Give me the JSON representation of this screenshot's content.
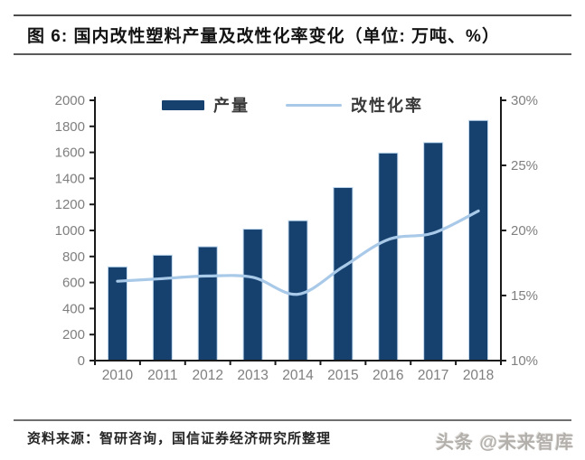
{
  "title": "图 6: 国内改性塑料产量及改性化率变化（单位: 万吨、%）",
  "source_note": "资料来源：智研咨询，国信证券经济研究所整理",
  "watermark": "头条 @未来智库",
  "colors": {
    "bar": "#16406E",
    "bar_edge": "#bdd7ee",
    "line": "#a9c9e8",
    "axis": "#1a1a1a",
    "tick_label": "#7f7f7f",
    "legend_text": "#3a3a3a"
  },
  "chart_data": {
    "type": "bar",
    "subtype": "bar+line dual axis",
    "title": "国内改性塑料产量及改性化率变化",
    "units": "万吨、%",
    "categories": [
      "2010",
      "2011",
      "2012",
      "2013",
      "2014",
      "2015",
      "2016",
      "2017",
      "2018"
    ],
    "series": [
      {
        "name": "产量",
        "type": "bar",
        "axis": "left",
        "values": [
          720,
          810,
          875,
          1010,
          1075,
          1330,
          1595,
          1675,
          1845
        ]
      },
      {
        "name": "改性化率",
        "type": "line",
        "axis": "right",
        "values": [
          16.1,
          16.3,
          16.5,
          16.4,
          15.1,
          17.2,
          19.3,
          19.8,
          21.5
        ]
      }
    ],
    "left_axis": {
      "min": 0,
      "max": 2000,
      "step": 200,
      "labels": [
        "0",
        "200",
        "400",
        "600",
        "800",
        "1000",
        "1200",
        "1400",
        "1600",
        "1800",
        "2000"
      ]
    },
    "right_axis": {
      "min": 10,
      "max": 30,
      "step": 5,
      "labels": [
        "10%",
        "15%",
        "20%",
        "25%",
        "30%"
      ]
    },
    "legend_position": "top-center",
    "grid": false
  }
}
